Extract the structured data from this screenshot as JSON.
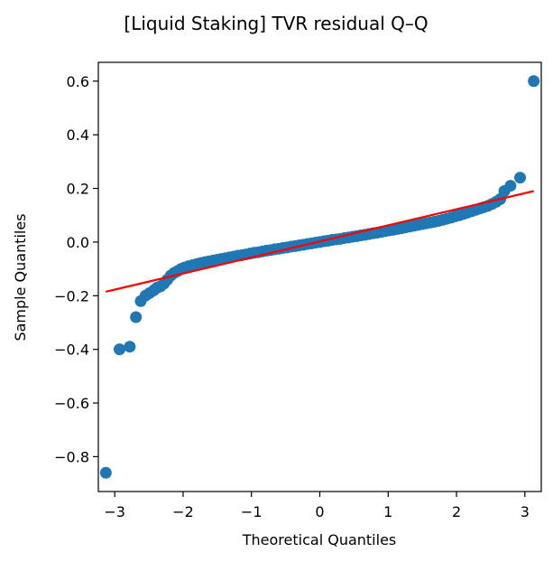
{
  "chart_data": {
    "type": "scatter",
    "title": "[Liquid Staking] TVR residual Q–Q",
    "xlabel": "Theoretical Quantiles",
    "ylabel": "Sample Quantiles",
    "xlim": [
      -3.24,
      3.24
    ],
    "ylim": [
      -0.93,
      0.67
    ],
    "xticks": [
      -3,
      -2,
      -1,
      0,
      1,
      2,
      3
    ],
    "xtick_labels": [
      "−3",
      "−2",
      "−1",
      "0",
      "1",
      "2",
      "3"
    ],
    "yticks": [
      -0.8,
      -0.6,
      -0.4,
      -0.2,
      0.0,
      0.2,
      0.4,
      0.6
    ],
    "ytick_labels": [
      "−0.8",
      "−0.6",
      "−0.4",
      "−0.2",
      "0.0",
      "0.2",
      "0.4",
      "0.6"
    ],
    "grid": false,
    "point_color": "#1f77b4",
    "line_color": "#ff0000",
    "points": [
      [
        -3.13,
        -0.86
      ],
      [
        -2.93,
        -0.4
      ],
      [
        -2.78,
        -0.39
      ],
      [
        -2.69,
        -0.28
      ],
      [
        -2.62,
        -0.22
      ],
      [
        -2.55,
        -0.2
      ],
      [
        -2.49,
        -0.19
      ],
      [
        -2.43,
        -0.18
      ],
      [
        -2.38,
        -0.17
      ],
      [
        -2.33,
        -0.165
      ],
      [
        -2.28,
        -0.155
      ],
      [
        -2.23,
        -0.14
      ],
      [
        -2.18,
        -0.125
      ],
      [
        -2.13,
        -0.115
      ],
      [
        -2.08,
        -0.108
      ],
      [
        -2.03,
        -0.1
      ],
      [
        -1.98,
        -0.095
      ],
      [
        -1.92,
        -0.09
      ],
      [
        -1.86,
        -0.086
      ],
      [
        -1.8,
        -0.082
      ],
      [
        -1.74,
        -0.078
      ],
      [
        -1.68,
        -0.075
      ],
      [
        -1.62,
        -0.072
      ],
      [
        -1.56,
        -0.069
      ],
      [
        -1.5,
        -0.066
      ],
      [
        -1.44,
        -0.063
      ],
      [
        -1.38,
        -0.06
      ],
      [
        -1.32,
        -0.057
      ],
      [
        -1.26,
        -0.054
      ],
      [
        -1.2,
        -0.051
      ],
      [
        -1.14,
        -0.049
      ],
      [
        -1.08,
        -0.046
      ],
      [
        -1.02,
        -0.043
      ],
      [
        -0.96,
        -0.04
      ],
      [
        -0.9,
        -0.038
      ],
      [
        -0.84,
        -0.035
      ],
      [
        -0.78,
        -0.032
      ],
      [
        -0.72,
        -0.03
      ],
      [
        -0.66,
        -0.027
      ],
      [
        -0.6,
        -0.025
      ],
      [
        -0.54,
        -0.022
      ],
      [
        -0.48,
        -0.02
      ],
      [
        -0.42,
        -0.017
      ],
      [
        -0.36,
        -0.015
      ],
      [
        -0.3,
        -0.012
      ],
      [
        -0.24,
        -0.01
      ],
      [
        -0.18,
        -0.007
      ],
      [
        -0.12,
        -0.005
      ],
      [
        -0.06,
        -0.002
      ],
      [
        0.0,
        0.0
      ],
      [
        0.06,
        0.003
      ],
      [
        0.12,
        0.005
      ],
      [
        0.18,
        0.008
      ],
      [
        0.24,
        0.01
      ],
      [
        0.3,
        0.012
      ],
      [
        0.36,
        0.015
      ],
      [
        0.42,
        0.017
      ],
      [
        0.48,
        0.02
      ],
      [
        0.54,
        0.022
      ],
      [
        0.6,
        0.025
      ],
      [
        0.66,
        0.027
      ],
      [
        0.72,
        0.03
      ],
      [
        0.78,
        0.033
      ],
      [
        0.84,
        0.035
      ],
      [
        0.9,
        0.038
      ],
      [
        0.96,
        0.041
      ],
      [
        1.02,
        0.044
      ],
      [
        1.08,
        0.046
      ],
      [
        1.14,
        0.049
      ],
      [
        1.2,
        0.052
      ],
      [
        1.26,
        0.055
      ],
      [
        1.32,
        0.058
      ],
      [
        1.38,
        0.061
      ],
      [
        1.44,
        0.064
      ],
      [
        1.5,
        0.067
      ],
      [
        1.56,
        0.07
      ],
      [
        1.62,
        0.073
      ],
      [
        1.68,
        0.076
      ],
      [
        1.74,
        0.079
      ],
      [
        1.8,
        0.083
      ],
      [
        1.86,
        0.087
      ],
      [
        1.92,
        0.091
      ],
      [
        1.98,
        0.096
      ],
      [
        2.04,
        0.1
      ],
      [
        2.1,
        0.105
      ],
      [
        2.16,
        0.11
      ],
      [
        2.22,
        0.115
      ],
      [
        2.28,
        0.12
      ],
      [
        2.34,
        0.125
      ],
      [
        2.4,
        0.13
      ],
      [
        2.46,
        0.135
      ],
      [
        2.52,
        0.142
      ],
      [
        2.58,
        0.15
      ],
      [
        2.64,
        0.16
      ],
      [
        2.7,
        0.19
      ],
      [
        2.79,
        0.21
      ],
      [
        2.93,
        0.24
      ],
      [
        3.13,
        0.6
      ]
    ],
    "fit_line": [
      [
        -3.13,
        -0.185
      ],
      [
        3.13,
        0.19
      ]
    ]
  }
}
